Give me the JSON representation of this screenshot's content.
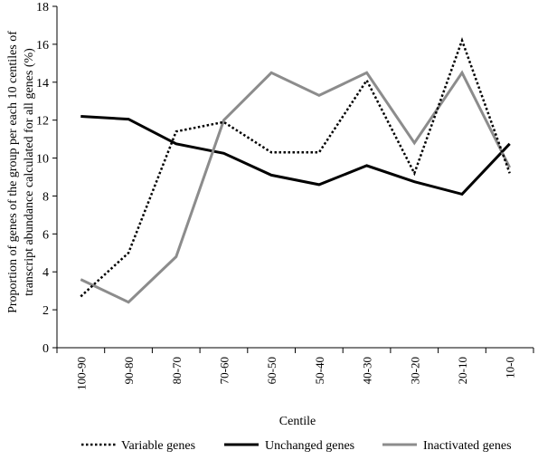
{
  "chart_data": {
    "type": "line",
    "title": "",
    "xlabel": "Centile",
    "ylabel_lines": [
      "Proportion of genes of the group per each 10 centiles of",
      "transcript abundance calculated for all genes (%)"
    ],
    "categories": [
      "100-90",
      "90-80",
      "80-70",
      "70-60",
      "60-50",
      "50-40",
      "40-30",
      "30-20",
      "20-10",
      "10-0"
    ],
    "ylim": [
      0,
      18
    ],
    "yticks": [
      "0",
      "2",
      "4",
      "6",
      "8",
      "10",
      "12",
      "14",
      "16",
      "18"
    ],
    "grid": false,
    "legend_position": "bottom",
    "series": [
      {
        "name": "Variable genes",
        "style": "dotted",
        "color": "#000000",
        "values": [
          2.7,
          5.0,
          11.4,
          11.9,
          10.3,
          10.3,
          14.1,
          9.2,
          16.2,
          9.2
        ]
      },
      {
        "name": "Unchanged genes",
        "style": "solid",
        "color": "#000000",
        "values": [
          12.2,
          12.05,
          10.75,
          10.25,
          9.1,
          8.6,
          9.6,
          8.75,
          8.1,
          10.75
        ]
      },
      {
        "name": "Inactivated genes",
        "style": "solid",
        "color": "#8c8c8c",
        "values": [
          3.6,
          2.4,
          4.8,
          12.0,
          14.5,
          13.3,
          14.5,
          10.8,
          14.5,
          9.5
        ]
      }
    ]
  }
}
